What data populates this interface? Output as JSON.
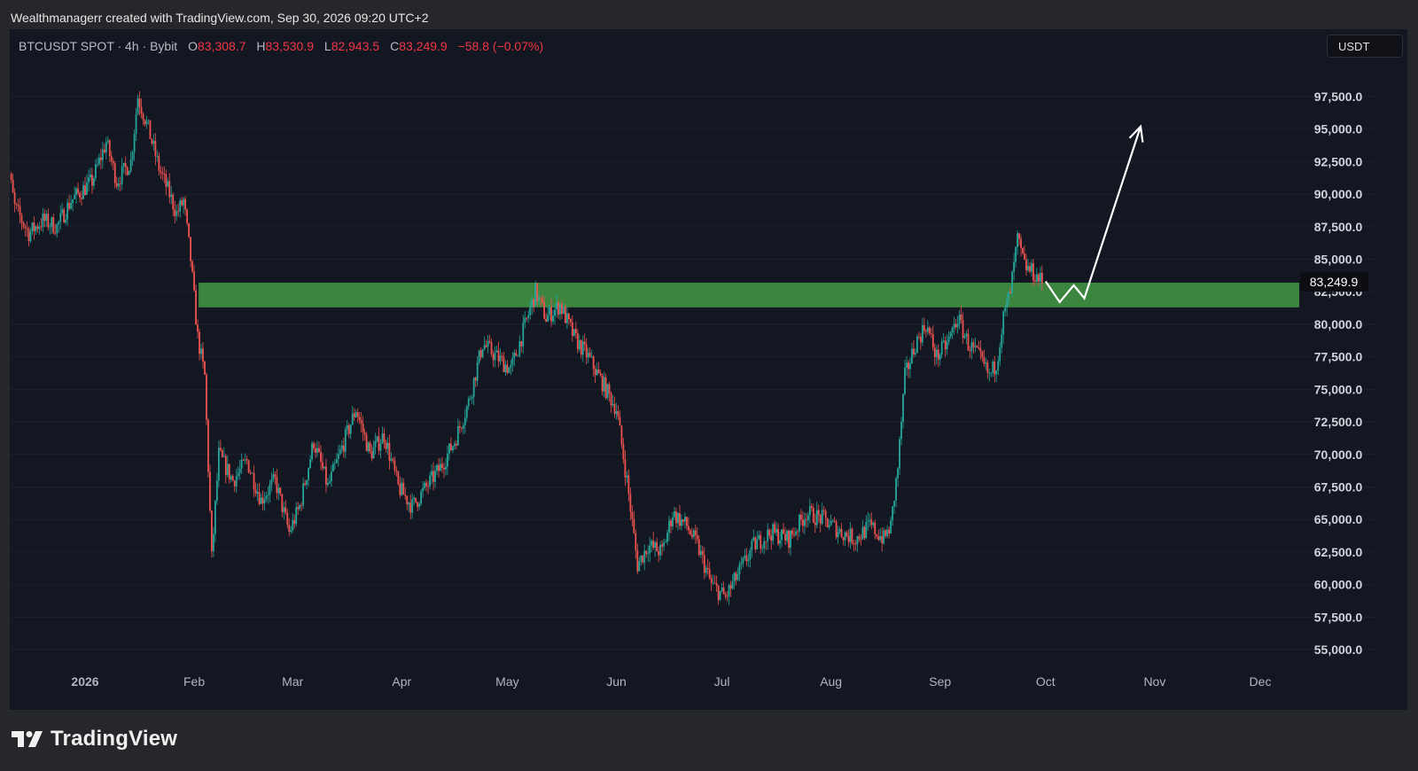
{
  "header": {
    "attribution": "Wealthmanagerr created with TradingView.com, Sep 30, 2026 09:20 UTC+2"
  },
  "symbol": {
    "name": "BTCUSDT SPOT · 4h · Bybit",
    "open_label": "O",
    "open": "83,308.7",
    "high_label": "H",
    "high": "83,530.9",
    "low_label": "L",
    "low": "82,943.5",
    "close_label": "C",
    "close": "83,249.9",
    "change": "−58.8 (−0.07%)"
  },
  "currency_button": "USDT",
  "brand": {
    "name": "TradingView",
    "icon": "tradingview-logo-icon"
  },
  "colors": {
    "up": "#26a69a",
    "down": "#ef5350",
    "zone": "#3d8b40",
    "background": "#131722"
  },
  "chart_data": {
    "type": "candlestick",
    "timeframe": "4h",
    "ylim": [
      54000,
      99500
    ],
    "y_ticks": [
      {
        "value": 97500,
        "label": "97,500.0"
      },
      {
        "value": 95000,
        "label": "95,000.0"
      },
      {
        "value": 92500,
        "label": "92,500.0"
      },
      {
        "value": 90000,
        "label": "90,000.0"
      },
      {
        "value": 87500,
        "label": "87,500.0"
      },
      {
        "value": 85000,
        "label": "85,000.0"
      },
      {
        "value": 82500,
        "label": "82,500.0"
      },
      {
        "value": 80000,
        "label": "80,000.0"
      },
      {
        "value": 77500,
        "label": "77,500.0"
      },
      {
        "value": 75000,
        "label": "75,000.0"
      },
      {
        "value": 72500,
        "label": "72,500.0"
      },
      {
        "value": 70000,
        "label": "70,000.0"
      },
      {
        "value": 67500,
        "label": "67,500.0"
      },
      {
        "value": 65000,
        "label": "65,000.0"
      },
      {
        "value": 62500,
        "label": "62,500.0"
      },
      {
        "value": 60000,
        "label": "60,000.0"
      },
      {
        "value": 57500,
        "label": "57,500.0"
      },
      {
        "value": 55000,
        "label": "55,000.0"
      }
    ],
    "x_ticks": [
      {
        "date": "2026-01-01",
        "label": "2026",
        "bold": true
      },
      {
        "date": "2026-02-01",
        "label": "Feb"
      },
      {
        "date": "2026-03-01",
        "label": "Mar"
      },
      {
        "date": "2026-04-01",
        "label": "Apr"
      },
      {
        "date": "2026-05-01",
        "label": "May"
      },
      {
        "date": "2026-06-01",
        "label": "Jun"
      },
      {
        "date": "2026-07-01",
        "label": "Jul"
      },
      {
        "date": "2026-08-01",
        "label": "Aug"
      },
      {
        "date": "2026-09-01",
        "label": "Sep"
      },
      {
        "date": "2026-10-01",
        "label": "Oct"
      },
      {
        "date": "2026-11-01",
        "label": "Nov"
      },
      {
        "date": "2026-12-01",
        "label": "Dec"
      }
    ],
    "last_price": {
      "value": 83249.9,
      "label": "83,249.9"
    },
    "price_path": [
      {
        "date": "2025-12-09",
        "price": 94000
      },
      {
        "date": "2025-12-12",
        "price": 89000
      },
      {
        "date": "2025-12-16",
        "price": 87000
      },
      {
        "date": "2025-12-20",
        "price": 88000
      },
      {
        "date": "2025-12-24",
        "price": 87500
      },
      {
        "date": "2025-12-28",
        "price": 89500
      },
      {
        "date": "2026-01-03",
        "price": 91000
      },
      {
        "date": "2026-01-07",
        "price": 94000
      },
      {
        "date": "2026-01-10",
        "price": 91000
      },
      {
        "date": "2026-01-14",
        "price": 92500
      },
      {
        "date": "2026-01-16",
        "price": 97500
      },
      {
        "date": "2026-01-19",
        "price": 95000
      },
      {
        "date": "2026-01-22",
        "price": 92000
      },
      {
        "date": "2026-01-25",
        "price": 90000
      },
      {
        "date": "2026-01-27",
        "price": 88500
      },
      {
        "date": "2026-01-29",
        "price": 89500
      },
      {
        "date": "2026-01-31",
        "price": 85000
      },
      {
        "date": "2026-02-02",
        "price": 79000
      },
      {
        "date": "2026-02-04",
        "price": 76000
      },
      {
        "date": "2026-02-06",
        "price": 62000
      },
      {
        "date": "2026-02-08",
        "price": 70000
      },
      {
        "date": "2026-02-12",
        "price": 68000
      },
      {
        "date": "2026-02-16",
        "price": 69500
      },
      {
        "date": "2026-02-20",
        "price": 66500
      },
      {
        "date": "2026-02-24",
        "price": 68000
      },
      {
        "date": "2026-02-28",
        "price": 64000
      },
      {
        "date": "2026-03-03",
        "price": 66000
      },
      {
        "date": "2026-03-07",
        "price": 71000
      },
      {
        "date": "2026-03-11",
        "price": 67500
      },
      {
        "date": "2026-03-15",
        "price": 70500
      },
      {
        "date": "2026-03-19",
        "price": 73500
      },
      {
        "date": "2026-03-23",
        "price": 70000
      },
      {
        "date": "2026-03-27",
        "price": 71500
      },
      {
        "date": "2026-03-31",
        "price": 67500
      },
      {
        "date": "2026-04-04",
        "price": 66000
      },
      {
        "date": "2026-04-08",
        "price": 67500
      },
      {
        "date": "2026-04-12",
        "price": 69000
      },
      {
        "date": "2026-04-16",
        "price": 71000
      },
      {
        "date": "2026-04-20",
        "price": 74000
      },
      {
        "date": "2026-04-24",
        "price": 78500
      },
      {
        "date": "2026-04-28",
        "price": 77500
      },
      {
        "date": "2026-05-02",
        "price": 76500
      },
      {
        "date": "2026-05-05",
        "price": 79000
      },
      {
        "date": "2026-05-09",
        "price": 82500
      },
      {
        "date": "2026-05-12",
        "price": 80500
      },
      {
        "date": "2026-05-16",
        "price": 81500
      },
      {
        "date": "2026-05-20",
        "price": 79000
      },
      {
        "date": "2026-05-24",
        "price": 77500
      },
      {
        "date": "2026-05-28",
        "price": 75500
      },
      {
        "date": "2026-06-01",
        "price": 73500
      },
      {
        "date": "2026-06-04",
        "price": 68000
      },
      {
        "date": "2026-06-07",
        "price": 61500
      },
      {
        "date": "2026-06-10",
        "price": 63000
      },
      {
        "date": "2026-06-14",
        "price": 62500
      },
      {
        "date": "2026-06-17",
        "price": 65500
      },
      {
        "date": "2026-06-21",
        "price": 64500
      },
      {
        "date": "2026-06-24",
        "price": 63000
      },
      {
        "date": "2026-06-28",
        "price": 60000
      },
      {
        "date": "2026-07-02",
        "price": 59000
      },
      {
        "date": "2026-07-06",
        "price": 61000
      },
      {
        "date": "2026-07-10",
        "price": 63000
      },
      {
        "date": "2026-07-15",
        "price": 64000
      },
      {
        "date": "2026-07-20",
        "price": 63500
      },
      {
        "date": "2026-07-25",
        "price": 65500
      },
      {
        "date": "2026-07-30",
        "price": 65000
      },
      {
        "date": "2026-08-04",
        "price": 64000
      },
      {
        "date": "2026-08-08",
        "price": 63500
      },
      {
        "date": "2026-08-12",
        "price": 64500
      },
      {
        "date": "2026-08-16",
        "price": 63500
      },
      {
        "date": "2026-08-18",
        "price": 64500
      },
      {
        "date": "2026-08-20",
        "price": 69000
      },
      {
        "date": "2026-08-22",
        "price": 76000
      },
      {
        "date": "2026-08-25",
        "price": 78500
      },
      {
        "date": "2026-08-28",
        "price": 80000
      },
      {
        "date": "2026-08-31",
        "price": 77500
      },
      {
        "date": "2026-09-03",
        "price": 78500
      },
      {
        "date": "2026-09-06",
        "price": 80500
      },
      {
        "date": "2026-09-09",
        "price": 78500
      },
      {
        "date": "2026-09-12",
        "price": 77500
      },
      {
        "date": "2026-09-15",
        "price": 76000
      },
      {
        "date": "2026-09-17",
        "price": 77000
      },
      {
        "date": "2026-09-19",
        "price": 80500
      },
      {
        "date": "2026-09-21",
        "price": 82500
      },
      {
        "date": "2026-09-23",
        "price": 86500
      },
      {
        "date": "2026-09-25",
        "price": 84500
      },
      {
        "date": "2026-09-28",
        "price": 83800
      },
      {
        "date": "2026-09-30",
        "price": 83250
      }
    ],
    "support_zone": {
      "from": "2026-02-01",
      "to": "2026-12-20",
      "price_low": 81300,
      "price_high": 83200,
      "color": "#3d8b40"
    },
    "projection": {
      "points": [
        {
          "date": "2026-10-01",
          "price": 83300
        },
        {
          "date": "2026-10-05",
          "price": 81700
        },
        {
          "date": "2026-10-09",
          "price": 83000
        },
        {
          "date": "2026-10-12",
          "price": 82000
        },
        {
          "date": "2026-10-28",
          "price": 95200
        }
      ],
      "arrow": true,
      "color": "#ffffff"
    }
  }
}
